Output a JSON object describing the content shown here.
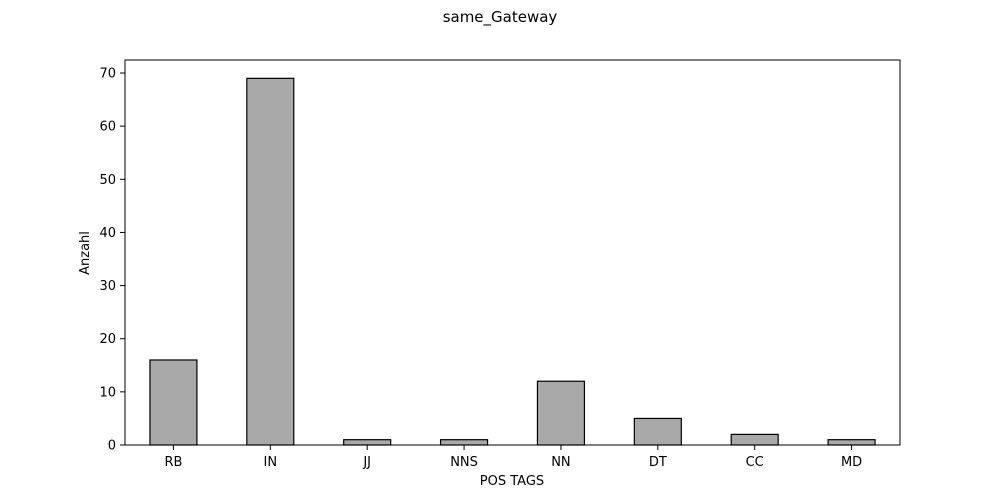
{
  "chart_data": {
    "type": "bar",
    "title": "same_Gateway",
    "xlabel": "POS TAGS",
    "ylabel": "Anzahl",
    "categories": [
      "RB",
      "IN",
      "JJ",
      "NNS",
      "NN",
      "DT",
      "CC",
      "MD"
    ],
    "values": [
      16,
      69,
      1,
      1,
      12,
      5,
      2,
      1
    ],
    "ylim": [
      0,
      72.45
    ],
    "yticks": [
      0,
      10,
      20,
      30,
      40,
      50,
      60,
      70
    ],
    "grid": false,
    "bar_color": "#a9a9a9",
    "edge_color": "#000000"
  }
}
